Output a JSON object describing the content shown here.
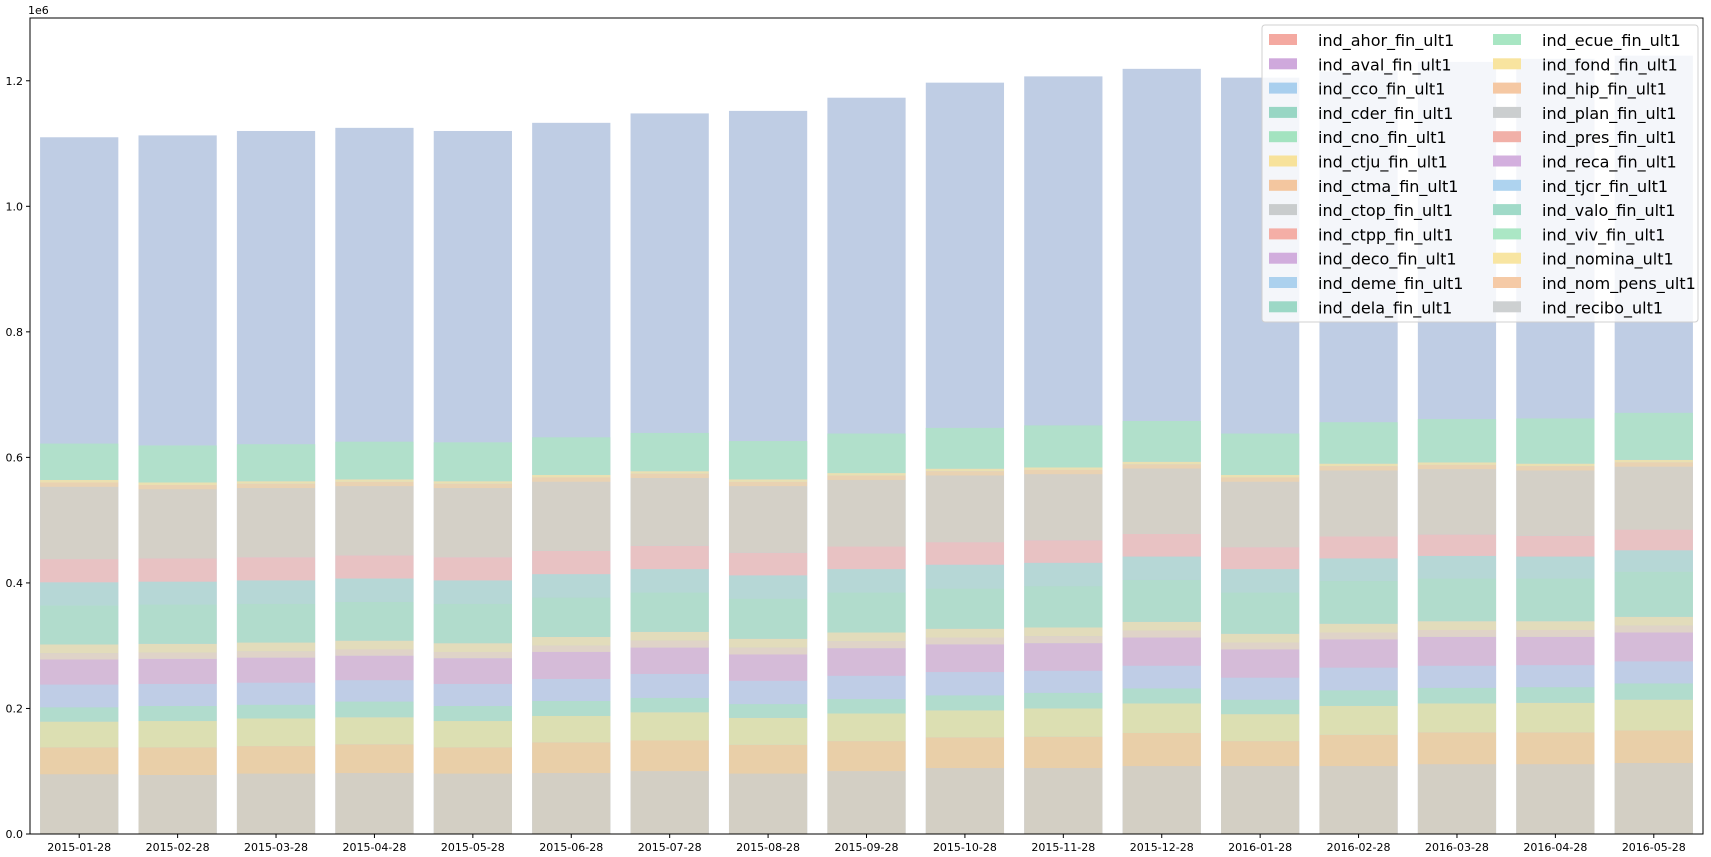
{
  "chart_data": {
    "type": "bar",
    "stacked": true,
    "title": "",
    "xlabel": "",
    "ylabel": "",
    "offset_text": "1e6",
    "ylim": [
      0,
      1300000
    ],
    "yticks": [
      0,
      200000,
      400000,
      600000,
      800000,
      1000000,
      1200000
    ],
    "ytick_labels": [
      "0.0",
      "0.2",
      "0.4",
      "0.6",
      "0.8",
      "1.0",
      "1.2"
    ],
    "legend_position": "top-right",
    "legend_columns": 2,
    "categories": [
      "2015-01-28",
      "2015-02-28",
      "2015-03-28",
      "2015-04-28",
      "2015-05-28",
      "2015-06-28",
      "2015-07-28",
      "2015-08-28",
      "2015-09-28",
      "2015-10-28",
      "2015-11-28",
      "2015-12-28",
      "2016-01-28",
      "2016-02-28",
      "2016-03-28",
      "2016-04-28",
      "2016-05-28"
    ],
    "totals": [
      1110000,
      1113000,
      1120000,
      1125000,
      1120000,
      1133000,
      1148000,
      1152000,
      1173000,
      1197000,
      1207000,
      1219000,
      1205000,
      1215000,
      1230000,
      1235000,
      1240000
    ],
    "series": [
      {
        "name": "ind_ahor_fin_ult1",
        "color": "#f4a9a1"
      },
      {
        "name": "ind_aval_fin_ult1",
        "color": "#cfa9dc"
      },
      {
        "name": "ind_cco_fin_ult1",
        "color": "#a9cfee"
      },
      {
        "name": "ind_cder_fin_ult1",
        "color": "#98d6c4"
      },
      {
        "name": "ind_cno_fin_ult1",
        "color": "#a3e3c0"
      },
      {
        "name": "ind_ctju_fin_ult1",
        "color": "#f7e29b"
      },
      {
        "name": "ind_ctma_fin_ult1",
        "color": "#f3c69f"
      },
      {
        "name": "ind_ctop_fin_ult1",
        "color": "#c9cccd"
      },
      {
        "name": "ind_ctpp_fin_ult1",
        "color": "#f4aea6"
      },
      {
        "name": "ind_deco_fin_ult1",
        "color": "#d1addd"
      },
      {
        "name": "ind_deme_fin_ult1",
        "color": "#acd1ee"
      },
      {
        "name": "ind_dela_fin_ult1",
        "color": "#9cd8c6"
      },
      {
        "name": "ind_ecue_fin_ult1",
        "color": "#a8e6c3"
      },
      {
        "name": "ind_fond_fin_ult1",
        "color": "#f8e49f"
      },
      {
        "name": "ind_hip_fin_ult1",
        "color": "#f5c8a3"
      },
      {
        "name": "ind_plan_fin_ult1",
        "color": "#cbcecf"
      },
      {
        "name": "ind_pres_fin_ult1",
        "color": "#f1b0a8"
      },
      {
        "name": "ind_reca_fin_ult1",
        "color": "#d3afde"
      },
      {
        "name": "ind_tjcr_fin_ult1",
        "color": "#aed3ef"
      },
      {
        "name": "ind_valo_fin_ult1",
        "color": "#a0dac8"
      },
      {
        "name": "ind_viv_fin_ult1",
        "color": "#abe7c5"
      },
      {
        "name": "ind_nomina_ult1",
        "color": "#f8e5a2"
      },
      {
        "name": "ind_nom_pens_ult1",
        "color": "#f5caa6"
      },
      {
        "name": "ind_recibo_ult1",
        "color": "#cdd0d1"
      }
    ],
    "visible_bands": [
      {
        "name": "recibo",
        "color": "#d3cfc4",
        "values": [
          95000,
          94000,
          96000,
          97000,
          96000,
          97000,
          100000,
          96000,
          100000,
          105000,
          105000,
          108000,
          108000,
          108000,
          111000,
          111000,
          113000
        ]
      },
      {
        "name": "nom_pens",
        "color": "#e9cfa8",
        "values": [
          43000,
          44000,
          44000,
          46000,
          42000,
          49000,
          49000,
          46000,
          48000,
          49000,
          50000,
          53000,
          40000,
          50000,
          51000,
          51000,
          52000
        ]
      },
      {
        "name": "nomina",
        "color": "#dcdfb2",
        "values": [
          41000,
          42000,
          44000,
          43000,
          42000,
          42000,
          45000,
          43000,
          44000,
          43000,
          45000,
          47000,
          43000,
          46000,
          46000,
          47000,
          49000
        ]
      },
      {
        "name": "viv_valo",
        "color": "#b1dccd",
        "values": [
          23000,
          24000,
          22000,
          25000,
          24000,
          24000,
          23000,
          22000,
          23000,
          24000,
          25000,
          24000,
          23000,
          25000,
          25000,
          25000,
          26000
        ]
      },
      {
        "name": "tjcr",
        "color": "#bfcde6",
        "values": [
          36000,
          35000,
          35000,
          34000,
          35000,
          35000,
          38000,
          37000,
          37000,
          37000,
          35000,
          36000,
          35000,
          36000,
          35000,
          35000,
          35000
        ]
      },
      {
        "name": "reca",
        "color": "#d5bbd8",
        "values": [
          40000,
          40000,
          40000,
          39000,
          41000,
          43000,
          42000,
          42000,
          44000,
          44000,
          44000,
          45000,
          45000,
          45000,
          46000,
          45000,
          46000
        ]
      },
      {
        "name": "plan_pres",
        "color": "#dfd3c8",
        "values": [
          10000,
          10000,
          10000,
          10000,
          10000,
          10000,
          11000,
          11000,
          11000,
          11000,
          11000,
          11000,
          11000,
          11000,
          11000,
          11000,
          11000
        ]
      },
      {
        "name": "hip_fond",
        "color": "#e2dcbb",
        "values": [
          14000,
          14000,
          14000,
          14000,
          14000,
          14000,
          14000,
          14000,
          14000,
          14000,
          14000,
          14000,
          14000,
          14000,
          14000,
          14000,
          14000
        ]
      },
      {
        "name": "ecue",
        "color": "#b1dccc",
        "values": [
          62000,
          63000,
          62000,
          62000,
          63000,
          63000,
          63000,
          64000,
          64000,
          64000,
          66000,
          67000,
          66000,
          68000,
          68000,
          68000,
          72000
        ]
      },
      {
        "name": "dela",
        "color": "#b6d7d6",
        "values": [
          37000,
          36000,
          37000,
          37000,
          37000,
          37000,
          37000,
          37000,
          37000,
          38000,
          37000,
          37000,
          37000,
          36000,
          36000,
          35000,
          34000
        ]
      },
      {
        "name": "ctpp",
        "color": "#e8c2c3",
        "values": [
          37000,
          37000,
          37000,
          37000,
          37000,
          37000,
          37000,
          36000,
          36000,
          36000,
          36000,
          36000,
          35000,
          35000,
          34000,
          33000,
          33000
        ]
      },
      {
        "name": "ctop",
        "color": "#d4d0c7",
        "values": [
          115000,
          110000,
          110000,
          110000,
          110000,
          110000,
          108000,
          106000,
          106000,
          106000,
          105000,
          104000,
          104000,
          105000,
          104000,
          104000,
          100000
        ]
      },
      {
        "name": "ctma",
        "color": "#e9d2b2",
        "values": [
          7000,
          7000,
          7000,
          7000,
          7000,
          7000,
          7000,
          7000,
          7000,
          7000,
          7000,
          7000,
          7000,
          7000,
          7000,
          7000,
          7000
        ]
      },
      {
        "name": "ctju",
        "color": "#eae0b1",
        "values": [
          4000,
          4000,
          4000,
          4000,
          4000,
          4000,
          4000,
          4000,
          4000,
          4000,
          4000,
          4000,
          4000,
          4000,
          4000,
          4000,
          4000
        ]
      },
      {
        "name": "cno",
        "color": "#b1e0cb",
        "values": [
          58000,
          59000,
          59000,
          60000,
          62000,
          60000,
          61000,
          61000,
          63000,
          65000,
          67000,
          65000,
          66000,
          66000,
          69000,
          72000,
          75000
        ]
      }
    ]
  }
}
